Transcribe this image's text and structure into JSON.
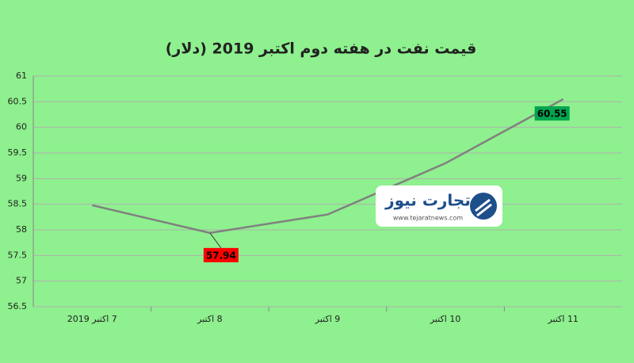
{
  "chart_data": {
    "type": "line",
    "title": "قیمت نفت در هفته دوم اکتبر 2019 (دلار)",
    "categories": [
      "7 اکتبر 2019",
      "8 اکتبر",
      "9 اکتبر",
      "10 اکتبر",
      "11 اکتبر"
    ],
    "values": [
      58.48,
      57.94,
      58.3,
      59.3,
      60.55
    ],
    "value_labels": [
      null,
      "57.94",
      null,
      null,
      "60.55"
    ],
    "label_colors": [
      null,
      "#ff0000",
      null,
      null,
      "#00a550"
    ],
    "color": "#808080",
    "ylim": [
      56.5,
      61
    ],
    "yticks": [
      56.5,
      57,
      57.5,
      58,
      58.5,
      59,
      59.5,
      60,
      60.5,
      61
    ],
    "grid": true,
    "watermark": {
      "name": "تجارت نیوز",
      "url": "www.tejaratnews.com"
    }
  }
}
